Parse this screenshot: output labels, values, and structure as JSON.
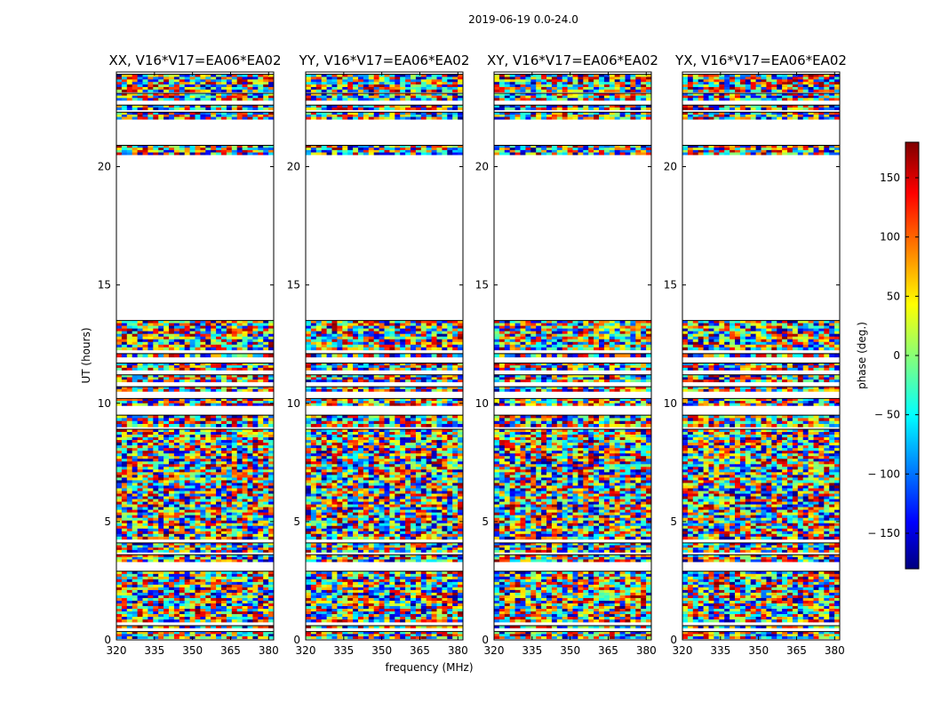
{
  "chart_data": {
    "type": "heatmap",
    "suptitle": "2019-06-19 0.0-24.0",
    "xlabel": "frequency (MHz)",
    "ylabel": "UT (hours)",
    "xlim": [
      320,
      382
    ],
    "ylim": [
      0,
      24
    ],
    "xticks": [
      "320",
      "335",
      "350",
      "365",
      "380"
    ],
    "xtick_values": [
      320,
      335,
      350,
      365,
      380
    ],
    "yticks": [
      "0",
      "5",
      "10",
      "15",
      "20"
    ],
    "ytick_values": [
      0,
      5,
      10,
      15,
      20
    ],
    "colorbar": {
      "label": "phase (deg.)",
      "range": [
        -180,
        180
      ],
      "ticks": [
        "150",
        "100",
        "50",
        "0",
        "− 50",
        "− 100",
        "− 150"
      ],
      "tick_values": [
        150,
        100,
        50,
        0,
        -50,
        -100,
        -150
      ],
      "colormap": "jet",
      "stops": [
        "#00007f",
        "#0000ff",
        "#00ffff",
        "#ffff00",
        "#ff0000",
        "#7f0000"
      ]
    },
    "data_intervals_ut_hours": [
      [
        0.05,
        0.35
      ],
      [
        0.5,
        0.6
      ],
      [
        0.75,
        2.9
      ],
      [
        3.3,
        3.6
      ],
      [
        3.7,
        4.1
      ],
      [
        4.25,
        8.9
      ],
      [
        9.0,
        9.5
      ],
      [
        9.9,
        10.2
      ],
      [
        10.5,
        10.7
      ],
      [
        10.9,
        11.2
      ],
      [
        11.4,
        11.7
      ],
      [
        11.95,
        12.1
      ],
      [
        12.25,
        13.5
      ],
      [
        20.5,
        20.9
      ],
      [
        22.0,
        22.3
      ],
      [
        22.4,
        22.6
      ],
      [
        22.8,
        23.1
      ],
      [
        23.15,
        23.9
      ]
    ],
    "panels": [
      {
        "title": "XX, V16*V17=EA06*EA02",
        "polarization": "XX"
      },
      {
        "title": "YY, V16*V17=EA06*EA02",
        "polarization": "YY"
      },
      {
        "title": "XY, V16*V17=EA06*EA02",
        "polarization": "XY"
      },
      {
        "title": "YX, V16*V17=EA06*EA02",
        "polarization": "YX"
      }
    ]
  }
}
